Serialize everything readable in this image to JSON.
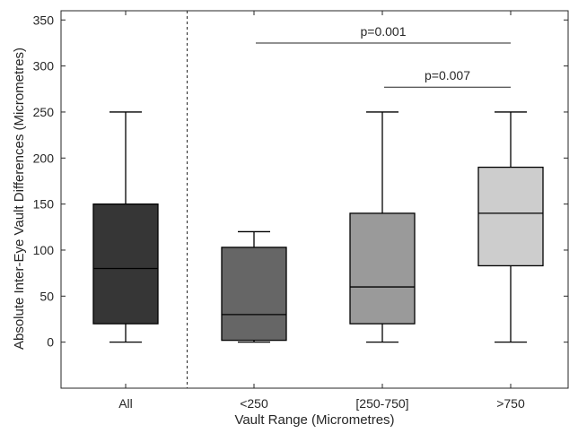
{
  "chart_data": {
    "type": "box",
    "xlabel": "Vault Range (Micrometres)",
    "ylabel": "Absolute Inter-Eye Vault Differences (Micrometres)",
    "categories": [
      "All",
      "<250",
      "[250-750]",
      ">750"
    ],
    "ylim": [
      -50,
      360
    ],
    "yticks": [
      0,
      50,
      100,
      150,
      200,
      250,
      300,
      350
    ],
    "ytick_labels": [
      "0",
      "50",
      "100",
      "150",
      "200",
      "250",
      "300",
      "350"
    ],
    "boxes": [
      {
        "category": "All",
        "min": 0,
        "q1": 20,
        "median": 80,
        "q3": 150,
        "max": 250,
        "color": "#363636"
      },
      {
        "category": "<250",
        "min": 0,
        "q1": 2,
        "median": 30,
        "q3": 103,
        "max": 120,
        "color": "#666666"
      },
      {
        "category": "[250-750]",
        "min": 0,
        "q1": 20,
        "median": 60,
        "q3": 140,
        "max": 250,
        "color": "#9a9a9a"
      },
      {
        "category": ">750",
        "min": 0,
        "q1": 83,
        "median": 140,
        "q3": 190,
        "max": 250,
        "color": "#cdcdcd"
      }
    ],
    "divider_after_category": "All",
    "annotations": [
      {
        "text": "p=0.001",
        "from": "<250",
        "to": ">750",
        "y": 325
      },
      {
        "text": "p=0.007",
        "from": "[250-750]",
        "to": ">750",
        "y": 277
      }
    ],
    "grid": false,
    "legend": "none"
  }
}
